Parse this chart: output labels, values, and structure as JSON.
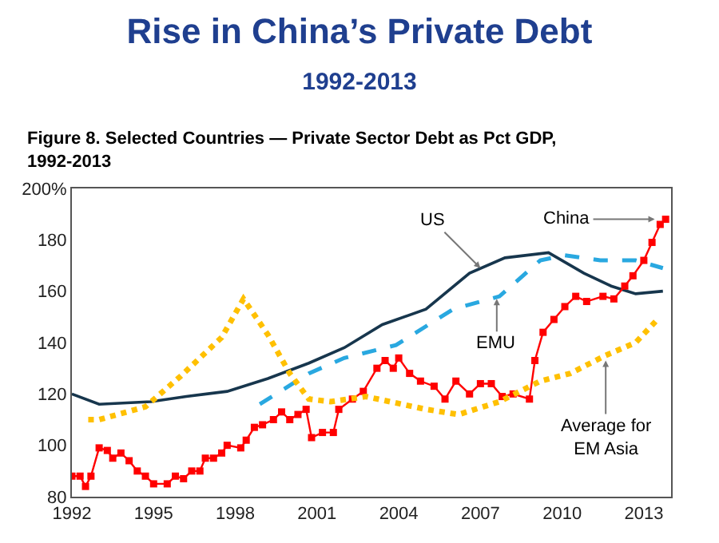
{
  "chart_data": {
    "type": "line",
    "title": "Rise in China’s Private Debt",
    "subtitle": "1992-2013",
    "annotations": [
      "Figure 8. Selected Countries — Private Sector Debt as Pct GDP,\n1992-2013",
      {
        "text": "US",
        "x": 2007,
        "y": 169
      },
      {
        "text": "EMU",
        "x": 2007.6,
        "y": 157
      },
      {
        "text": "China",
        "x": 2013.4,
        "y": 188
      },
      {
        "text": "Average for\nEM Asia",
        "x": 2011.6,
        "y": 133
      }
    ],
    "series": [
      {
        "color": "#17364d",
        "line_style": "solid",
        "marker": "none",
        "x": [
          1992,
          1993,
          1994.9,
          1996.2,
          1997.7,
          1999.2,
          2000.7,
          2002,
          2003.4,
          2005,
          2006.6,
          2007.9,
          2009.5,
          2010.8,
          2011.8,
          2012.7,
          2013.7
        ],
        "values": [
          120,
          116,
          117,
          119,
          121,
          126,
          132,
          138,
          147,
          153,
          167,
          173,
          175,
          167,
          162,
          159,
          160
        ]
      },
      {
        "color": "#29a8e0",
        "line_style": "dashed",
        "marker": "none",
        "x": [
          1998.9,
          2000.7,
          2002,
          2003.9,
          2006,
          2007.7,
          2009.2,
          2010.1,
          2011.4,
          2012.7,
          2013.7
        ],
        "values": [
          116,
          128,
          134,
          139,
          153,
          158,
          172,
          174,
          172,
          172,
          169
        ]
      },
      {
        "color": "#ff0000",
        "line_style": "solid",
        "marker": "square",
        "x": [
          1992,
          1992.3,
          1992.5,
          1992.7,
          1993,
          1993.3,
          1993.5,
          1993.8,
          1994.1,
          1994.4,
          1994.7,
          1995,
          1995.5,
          1995.8,
          1996.1,
          1996.4,
          1996.7,
          1996.9,
          1997.2,
          1997.5,
          1997.7,
          1998.2,
          1998.4,
          1998.7,
          1999,
          1999.4,
          1999.7,
          2000,
          2000.3,
          2000.6,
          2000.8,
          2001.2,
          2001.6,
          2001.8,
          2002.3,
          2002.7,
          2003.2,
          2003.5,
          2003.8,
          2004,
          2004.4,
          2004.8,
          2005.3,
          2005.7,
          2006.1,
          2006.6,
          2007,
          2007.4,
          2007.8,
          2008.2,
          2008.8,
          2009,
          2009.3,
          2009.7,
          2010.1,
          2010.5,
          2010.9,
          2011.5,
          2011.9,
          2012.3,
          2012.6,
          2013,
          2013.3,
          2013.6,
          2013.8
        ],
        "values": [
          88,
          88,
          84,
          88,
          99,
          98,
          95,
          97,
          94,
          90,
          88,
          85,
          85,
          88,
          87,
          90,
          90,
          95,
          95,
          97,
          100,
          99,
          102,
          107,
          108,
          110,
          113,
          110,
          112,
          114,
          103,
          105,
          105,
          114,
          118,
          121,
          130,
          133,
          130,
          134,
          128,
          125,
          123,
          118,
          125,
          120,
          124,
          124,
          119,
          120,
          118,
          133,
          144,
          149,
          154,
          158,
          156,
          158,
          157,
          162,
          166,
          172,
          179,
          186,
          188
        ]
      },
      {
        "color": "#ffc000",
        "line_style": "dotted",
        "marker": "none",
        "x": [
          1992.6,
          1993,
          1994.7,
          1996,
          1997.5,
          1998.3,
          1999.2,
          2000,
          2000.7,
          2001.5,
          2002.8,
          2005,
          2006.2,
          2007.7,
          2009.2,
          2010.3,
          2011.6,
          2012.7,
          2013.5
        ],
        "values": [
          110,
          110,
          115,
          127,
          142,
          157,
          143,
          128,
          118,
          117,
          119,
          114,
          112,
          117,
          125,
          128,
          135,
          140,
          149
        ]
      }
    ],
    "xlim": [
      1992,
      2014
    ],
    "xticks": [
      1992,
      1995,
      1998,
      2001,
      2004,
      2007,
      2010,
      2013
    ],
    "ylim": [
      80,
      200
    ],
    "yticks": [
      80,
      100,
      120,
      140,
      160,
      180,
      {
        "value": 200,
        "label": "200%"
      }
    ]
  }
}
